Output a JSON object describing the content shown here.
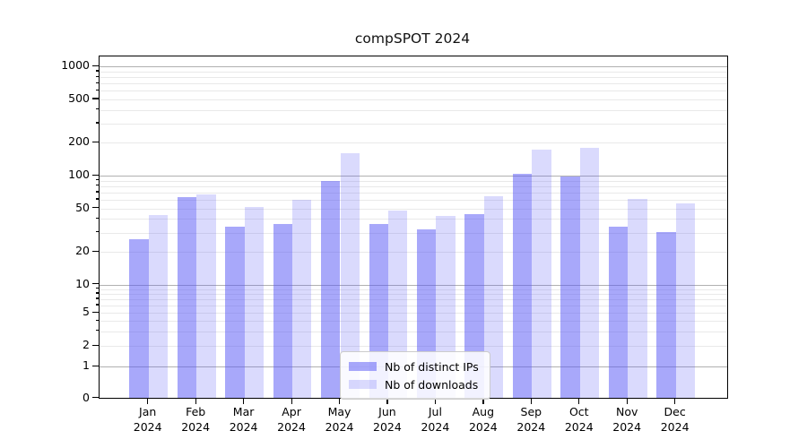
{
  "chart_data": {
    "type": "bar",
    "title": "compSPOT 2024",
    "yscale": "symlog",
    "grid": "both",
    "legend_position": "lower center",
    "categories": [
      "Jan",
      "Feb",
      "Mar",
      "Apr",
      "May",
      "Jun",
      "Jul",
      "Aug",
      "Sep",
      "Oct",
      "Nov",
      "Dec"
    ],
    "year": "2024",
    "series": [
      {
        "name": "Nb of distinct IPs",
        "color": "rgba(88,88,246,0.52)",
        "values": [
          26,
          63,
          34,
          36,
          88,
          36,
          32,
          44,
          102,
          98,
          34,
          30
        ]
      },
      {
        "name": "Nb of downloads",
        "color": "rgba(88,88,246,0.22)",
        "values": [
          43,
          67,
          51,
          60,
          160,
          47,
          42,
          64,
          173,
          178,
          61,
          55
        ]
      }
    ],
    "yticks": [
      0,
      1,
      2,
      5,
      10,
      20,
      50,
      100,
      200,
      500,
      1000
    ],
    "ylim": [
      0,
      1000
    ],
    "colors": {
      "grid_major": "#b0b0b0",
      "grid_minor": "#e9e9e9",
      "axis": "#000000",
      "background": "#ffffff"
    }
  }
}
